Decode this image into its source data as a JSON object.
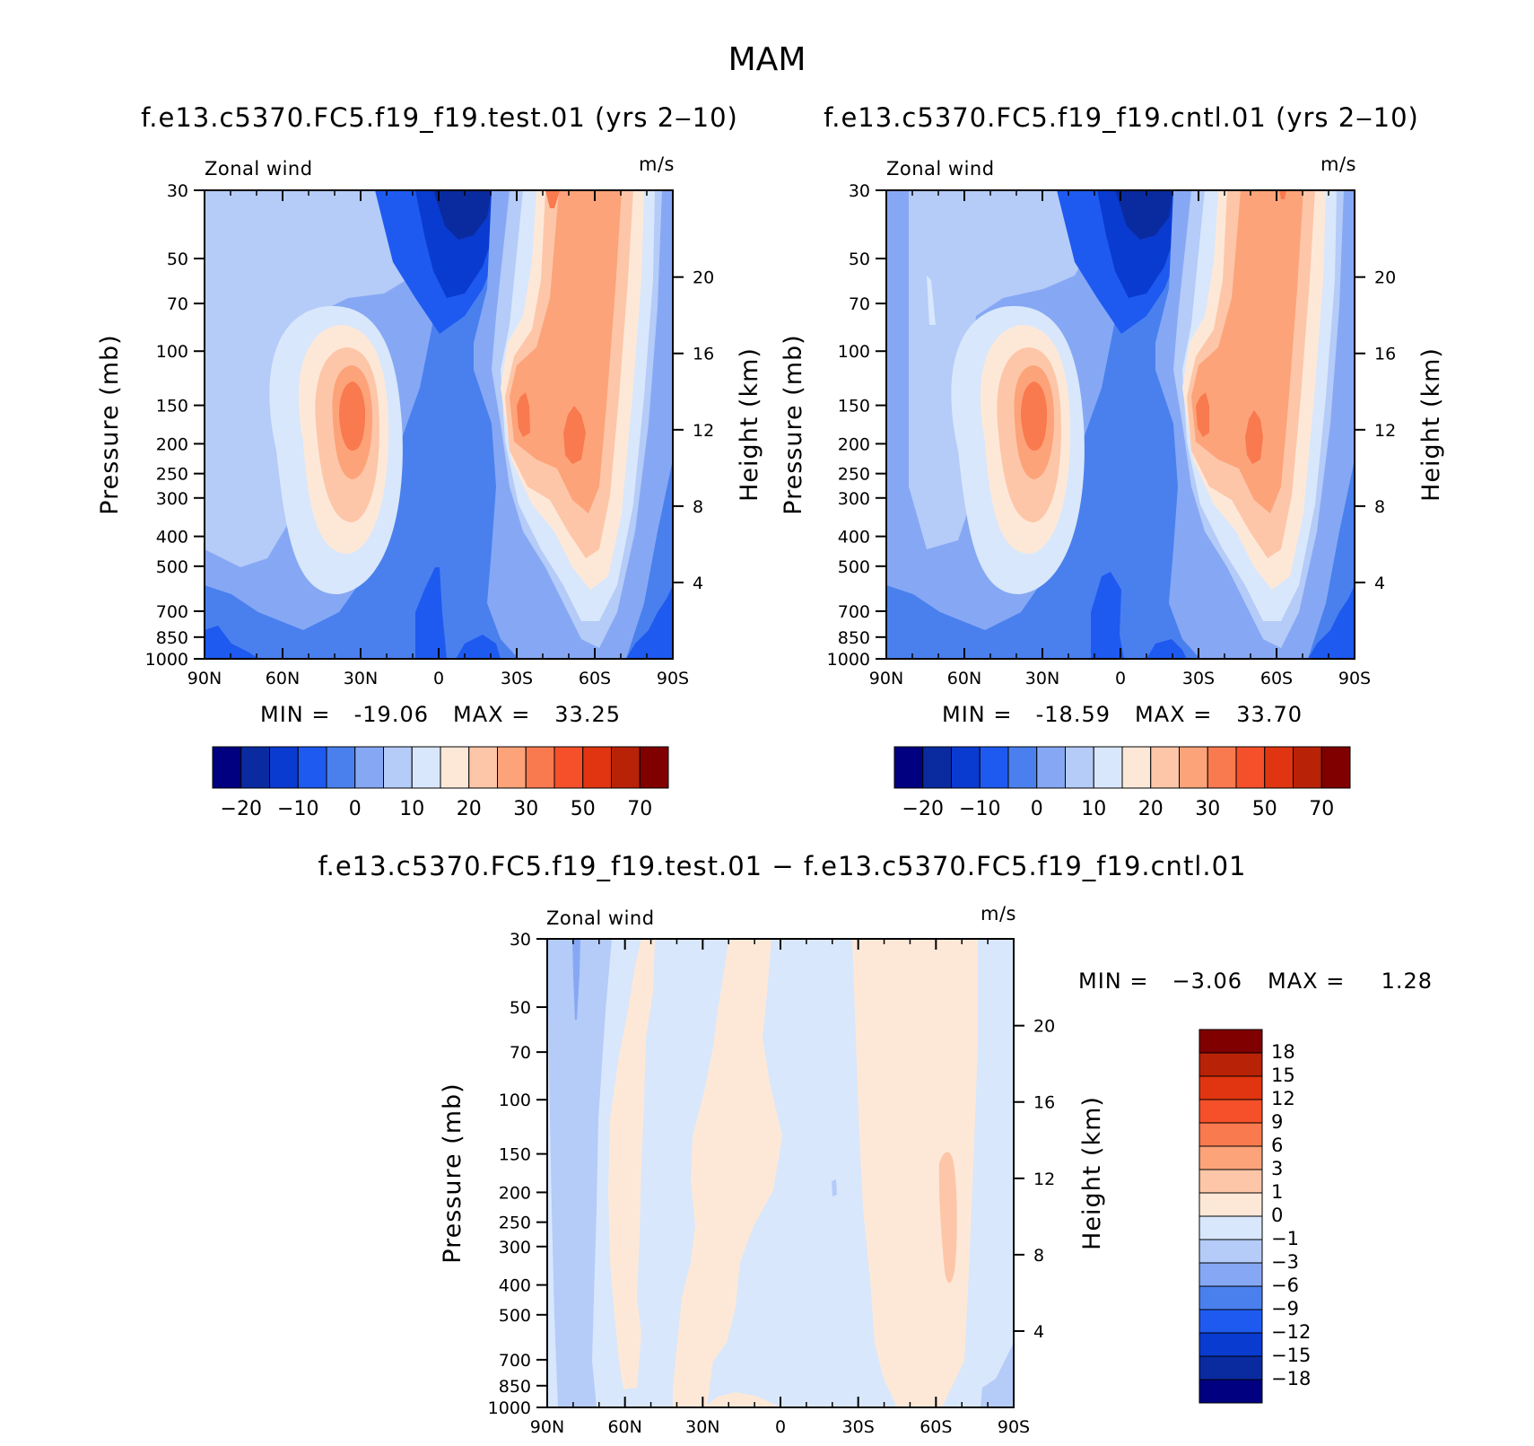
{
  "figure": {
    "main_title": "MAM",
    "colors": [
      "#000080",
      "#0a2ba0",
      "#0a3bd0",
      "#1e5af0",
      "#4a80ee",
      "#86a8f4",
      "#b5cbf8",
      "#d8e7fb",
      "#fde8d8",
      "#fdc6a8",
      "#fca37a",
      "#f97a4e",
      "#f5502a",
      "#e03510",
      "#b82206",
      "#800000"
    ]
  },
  "chart_data": [
    {
      "type": "heatmap",
      "panel": "test",
      "title": "f.e13.c5370.FC5.f19_f19.test.01 (yrs 2‒10)",
      "variable": "Zonal wind",
      "units": "m/s",
      "xlabel": "",
      "ylabel": "Pressure (mb)",
      "y2label": "Height (km)",
      "x_ticks": [
        "90N",
        "60N",
        "30N",
        "0",
        "30S",
        "60S",
        "90S"
      ],
      "y_ticks": [
        "30",
        "50",
        "70",
        "100",
        "150",
        "200",
        "250",
        "300",
        "400",
        "500",
        "700",
        "850",
        "1000"
      ],
      "y2_ticks": [
        "20",
        "16",
        "12",
        "8",
        "4"
      ],
      "min": "-19.06",
      "max": "33.25",
      "min_label": "MIN =",
      "max_label": "MAX =",
      "colorbar_labels": [
        "−20",
        "−10",
        "0",
        "10",
        "20",
        "30",
        "50",
        "70"
      ],
      "colorbar_levels": [
        -25,
        -20,
        -15,
        -10,
        -5,
        0,
        5,
        10,
        15,
        20,
        25,
        30,
        40,
        50,
        60,
        70,
        80
      ],
      "features": [
        {
          "kind": "westerly jet",
          "lat": "30N",
          "pressure_mb": 200,
          "max_ms": 33
        },
        {
          "kind": "westerly jet",
          "lat": "40S-50S",
          "pressure_mb": 200,
          "max_ms": 30
        },
        {
          "kind": "easterly",
          "lat": "10S",
          "pressure_mb": 30,
          "min_ms": -19
        }
      ]
    },
    {
      "type": "heatmap",
      "panel": "cntl",
      "title": "f.e13.c5370.FC5.f19_f19.cntl.01 (yrs 2‒10)",
      "variable": "Zonal wind",
      "units": "m/s",
      "xlabel": "",
      "ylabel": "Pressure (mb)",
      "y2label": "Height (km)",
      "x_ticks": [
        "90N",
        "60N",
        "30N",
        "0",
        "30S",
        "60S",
        "90S"
      ],
      "y_ticks": [
        "30",
        "50",
        "70",
        "100",
        "150",
        "200",
        "250",
        "300",
        "400",
        "500",
        "700",
        "850",
        "1000"
      ],
      "y2_ticks": [
        "20",
        "16",
        "12",
        "8",
        "4"
      ],
      "min": "-18.59",
      "max": "33.70",
      "min_label": "MIN =",
      "max_label": "MAX =",
      "colorbar_labels": [
        "−20",
        "−10",
        "0",
        "10",
        "20",
        "30",
        "50",
        "70"
      ],
      "colorbar_levels": [
        -25,
        -20,
        -15,
        -10,
        -5,
        0,
        5,
        10,
        15,
        20,
        25,
        30,
        40,
        50,
        60,
        70,
        80
      ],
      "features": [
        {
          "kind": "westerly jet",
          "lat": "30N",
          "pressure_mb": 200,
          "max_ms": 34
        },
        {
          "kind": "westerly jet",
          "lat": "40S-50S",
          "pressure_mb": 200,
          "max_ms": 30
        },
        {
          "kind": "easterly",
          "lat": "10S",
          "pressure_mb": 30,
          "min_ms": -19
        }
      ]
    },
    {
      "type": "heatmap",
      "panel": "difference",
      "title": "f.e13.c5370.FC5.f19_f19.test.01 − f.e13.c5370.FC5.f19_f19.cntl.01",
      "variable": "Zonal wind",
      "units": "m/s",
      "xlabel": "",
      "ylabel": "Pressure (mb)",
      "y2label": "Height (km)",
      "x_ticks": [
        "90N",
        "60N",
        "30N",
        "0",
        "30S",
        "60S",
        "90S"
      ],
      "y_ticks": [
        "30",
        "50",
        "70",
        "100",
        "150",
        "200",
        "250",
        "300",
        "400",
        "500",
        "700",
        "850",
        "1000"
      ],
      "y2_ticks": [
        "20",
        "16",
        "12",
        "8",
        "4"
      ],
      "min": "−3.06",
      "max": "1.28",
      "min_label": "MIN =",
      "max_label": "MAX =",
      "colorbar_labels": [
        "18",
        "15",
        "12",
        "9",
        "6",
        "3",
        "1",
        "0",
        "−1",
        "−3",
        "−6",
        "−9",
        "−12",
        "−15",
        "−18"
      ],
      "colorbar_levels": [
        18,
        15,
        12,
        9,
        6,
        3,
        1,
        0,
        -1,
        -3,
        -6,
        -9,
        -12,
        -15,
        -18
      ]
    }
  ]
}
